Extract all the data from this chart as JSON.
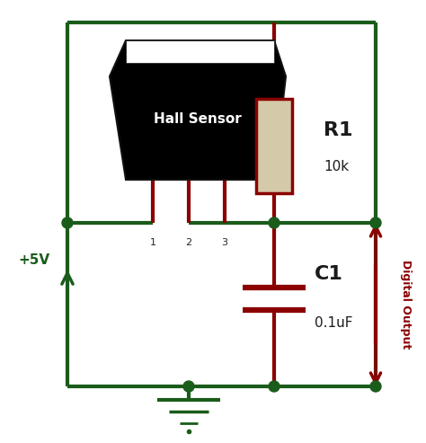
{
  "bg_color": "#ffffff",
  "dark_green": "#1a5c1a",
  "dark_red": "#8b0000",
  "resistor_fill": "#d4c9a8",
  "resistor_border": "#8b0000",
  "sensor_fill": "#000000",
  "fig_width": 4.74,
  "fig_height": 4.93,
  "dpi": 100,
  "labels": {
    "vcc": "+5V",
    "r1": "R1",
    "r1_val": "10k",
    "c1": "C1",
    "c1_val": "0.1uF",
    "hall": "Hall Sensor",
    "pin1": "1",
    "pin2": "2",
    "pin3": "3",
    "output": "Digital Output"
  }
}
